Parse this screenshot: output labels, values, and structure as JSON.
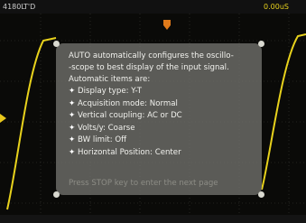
{
  "topbar": {
    "model": "4180L",
    "state": "T'D",
    "position": "0.00uS"
  },
  "help": {
    "intro": [
      "AUTO automatically configures the oscillo-",
      "-scope to best display of the input signal.",
      "Automatic items are:"
    ],
    "items": [
      "Display type: Y-T",
      "Acquisition mode: Normal",
      "Vertical coupling: AC or DC",
      "Volts/y: Coarse",
      "BW limit: Off",
      "Horizontal Position: Center"
    ],
    "footer": "Press STOP key to enter the next page"
  }
}
